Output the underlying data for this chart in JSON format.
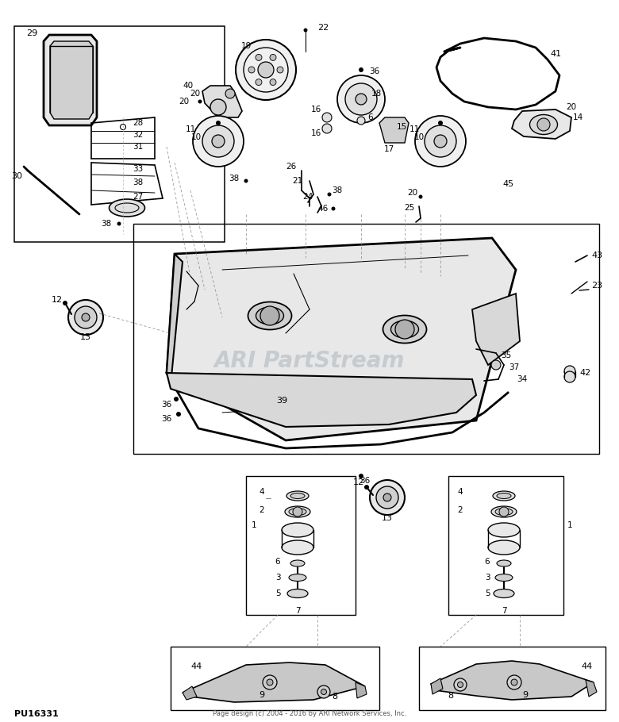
{
  "background_color": "#ffffff",
  "line_color": "#000000",
  "watermark_text": "ARI PartStream",
  "watermark_color": "#b0b8c0",
  "copyright_text": "Page design (c) 2004 - 2016 by ARI Network Services, Inc.",
  "part_number": "PU16331",
  "fig_width": 7.8,
  "fig_height": 9.1,
  "dpi": 100
}
